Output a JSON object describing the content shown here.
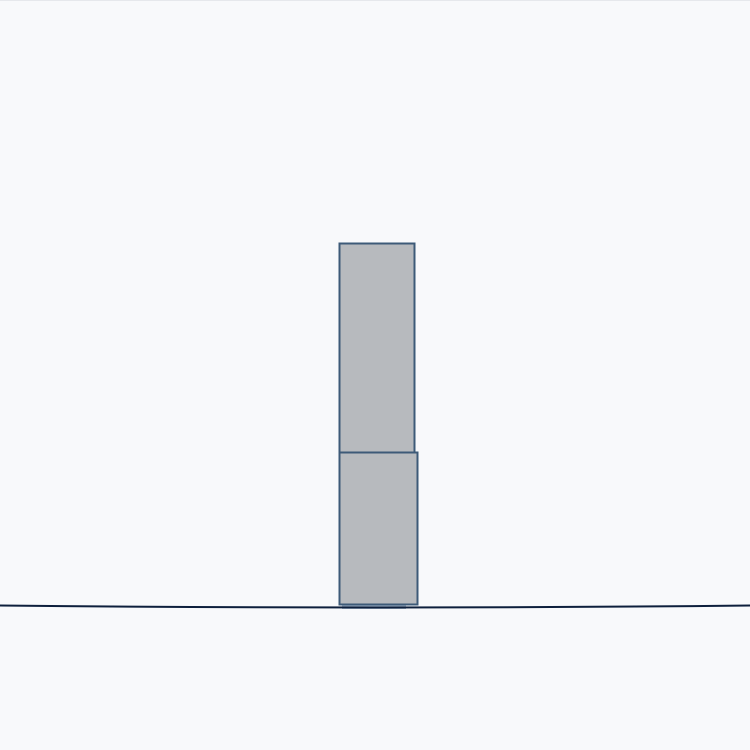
{
  "game": {
    "type": "block-stacking",
    "colors": {
      "background": "#f8f9fb",
      "ground_line": "#0d1f3c",
      "block_fill": "#b7babe",
      "block_outline": "#3d5a78"
    },
    "stack": {
      "block_count": 2,
      "blocks": [
        {
          "level": 1,
          "state": "placed"
        },
        {
          "level": 2,
          "state": "placed"
        }
      ]
    }
  }
}
